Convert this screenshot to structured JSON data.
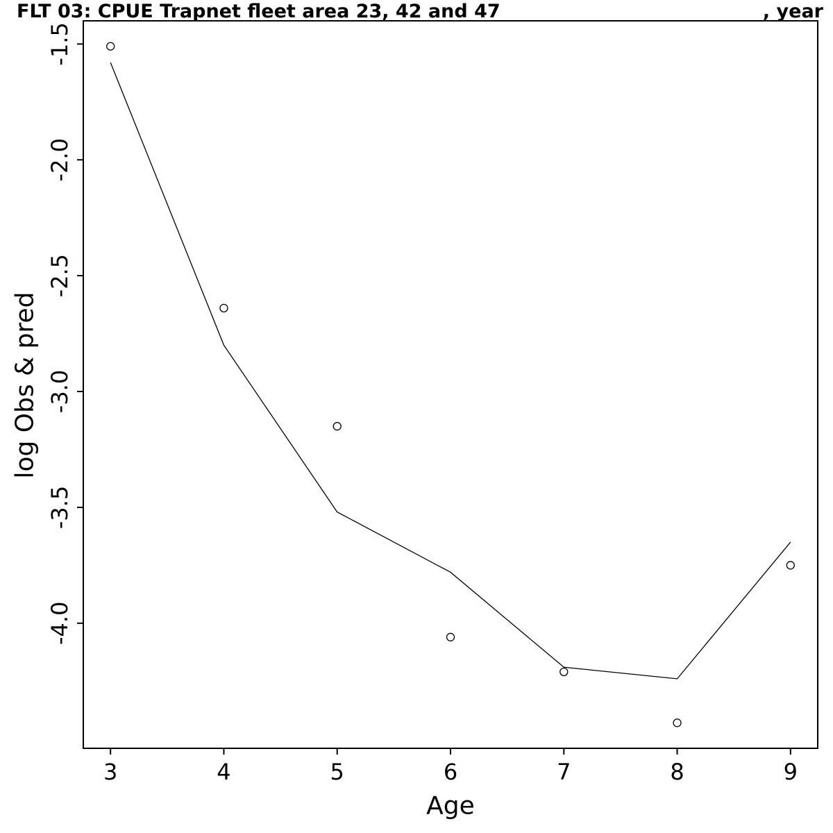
{
  "chart_data": {
    "type": "line",
    "title": "FLT 03: CPUE Trapnet fleet area 23, 42 and 47",
    "title_right": ", year",
    "xlabel": "Age",
    "ylabel": "log Obs & pred",
    "x": [
      3,
      4,
      5,
      6,
      7,
      8,
      9
    ],
    "series": [
      {
        "name": "log Obs",
        "style": "points",
        "marker": "open-circle",
        "values": [
          -1.51,
          -2.64,
          -3.15,
          -4.06,
          -4.21,
          -4.43,
          -3.75
        ]
      },
      {
        "name": "log pred",
        "style": "line",
        "values": [
          -1.58,
          -2.8,
          -3.52,
          -3.78,
          -4.19,
          -4.24,
          -3.65
        ]
      }
    ],
    "xlim": [
      2.76,
      9.24
    ],
    "ylim": [
      -4.54,
      -1.4
    ],
    "xticks": {
      "values": [
        3,
        4,
        5,
        6,
        7,
        8,
        9
      ],
      "labels": [
        "3",
        "4",
        "5",
        "6",
        "7",
        "8",
        "9"
      ]
    },
    "yticks": {
      "values": [
        -1.5,
        -2.0,
        -2.5,
        -3.0,
        -3.5,
        -4.0
      ],
      "labels": [
        "-1.5",
        "-2.0",
        "-2.5",
        "-3.0",
        "-3.5",
        "-4.0"
      ]
    },
    "grid": false,
    "legend": "none",
    "color": "#000000",
    "background": "#ffffff"
  }
}
